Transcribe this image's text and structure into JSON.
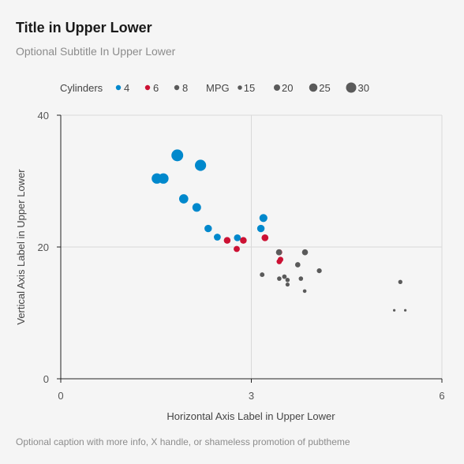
{
  "chart_data": {
    "type": "scatter",
    "title": "Title in Upper Lower",
    "subtitle": "Optional Subtitle In Upper Lower",
    "caption": "Optional caption with more info, X handle, or shameless promotion of pubtheme",
    "xlabel": "Horizontal Axis Label in Upper Lower",
    "ylabel": "Vertical Axis Label in Upper Lower",
    "xlim": [
      0,
      6
    ],
    "ylim": [
      0,
      40
    ],
    "x_ticks": [
      0,
      3,
      6
    ],
    "x_tick_labels": [
      "0",
      "3",
      "6"
    ],
    "y_ticks": [
      0,
      20,
      40
    ],
    "y_tick_labels": [
      "0",
      "20",
      "40"
    ],
    "grid": true,
    "legend": {
      "position": "top",
      "color_title": "Cylinders",
      "size_title": "MPG",
      "color_items": [
        {
          "label": "4",
          "color": "#0088cc"
        },
        {
          "label": "6",
          "color": "#cc1133"
        },
        {
          "label": "8",
          "color": "#5a5a5a"
        }
      ],
      "size_items": [
        {
          "label": "15",
          "value": 15
        },
        {
          "label": "20",
          "value": 20
        },
        {
          "label": "25",
          "value": 25
        },
        {
          "label": "30",
          "value": 30
        }
      ]
    },
    "series": [
      {
        "name": "4",
        "color": "#0088cc",
        "x": [
          1.513,
          1.615,
          1.835,
          1.935,
          2.14,
          2.2,
          2.32,
          2.465,
          2.78,
          3.15,
          3.19
        ],
        "y": [
          30.4,
          30.4,
          33.9,
          27.3,
          26.0,
          32.4,
          22.8,
          21.5,
          21.4,
          22.8,
          24.4
        ]
      },
      {
        "name": "6",
        "color": "#cc1133",
        "x": [
          2.62,
          2.77,
          2.875,
          3.215,
          3.44,
          3.44,
          3.46
        ],
        "y": [
          21.0,
          19.7,
          21.0,
          21.4,
          17.8,
          19.2,
          18.1
        ]
      },
      {
        "name": "8",
        "color": "#5a5a5a",
        "x": [
          3.17,
          3.435,
          3.44,
          3.52,
          3.57,
          3.57,
          3.73,
          3.78,
          3.84,
          3.845,
          4.07,
          5.25,
          5.345,
          5.424
        ],
        "y": [
          15.8,
          19.2,
          15.2,
          15.5,
          14.3,
          15.0,
          17.3,
          15.2,
          13.3,
          19.2,
          16.4,
          10.4,
          14.7,
          10.4
        ]
      }
    ]
  }
}
